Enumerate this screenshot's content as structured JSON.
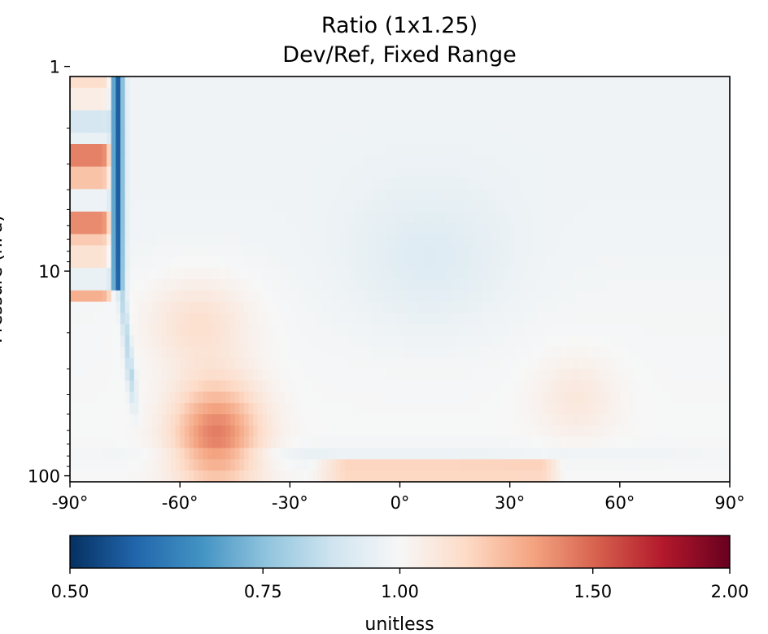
{
  "chart_data": {
    "type": "heatmap",
    "title": "Ratio (1x1.25)",
    "subtitle": "Dev/Ref, Fixed Range",
    "xlabel": "",
    "ylabel": "Pressure (hPa)",
    "x_scale": "linear",
    "y_scale": "log",
    "y_inverted": true,
    "xlim": [
      -90,
      90
    ],
    "ylim": [
      100,
      1
    ],
    "x_ticks": [
      {
        "value": -90,
        "label": "-90°"
      },
      {
        "value": -60,
        "label": "-60°"
      },
      {
        "value": -30,
        "label": "-30°"
      },
      {
        "value": 0,
        "label": "0°"
      },
      {
        "value": 30,
        "label": "30°"
      },
      {
        "value": 60,
        "label": "60°"
      },
      {
        "value": 90,
        "label": "90°"
      }
    ],
    "y_ticks": [
      {
        "value": 1,
        "label": "1"
      },
      {
        "value": 10,
        "label": "10"
      },
      {
        "value": 100,
        "label": "100"
      }
    ],
    "colorbar": {
      "label": "unitless",
      "colormap": "RdBu_r",
      "scale": "log",
      "range": [
        0.5,
        2.0
      ],
      "ticks": [
        {
          "value": 0.5,
          "label": "0.50"
        },
        {
          "value": 0.75,
          "label": "0.75"
        },
        {
          "value": 1.0,
          "label": "1.00"
        },
        {
          "value": 1.5,
          "label": "1.50"
        },
        {
          "value": 2.0,
          "label": "2.00"
        }
      ]
    },
    "grid": false,
    "features": [
      {
        "region": "polar vortex edge, thin strip",
        "lat": [
          -78,
          -75
        ],
        "pressure": [
          1,
          12
        ],
        "ratio": 0.55
      },
      {
        "region": "SH high-latitude stratosphere bands",
        "lat": [
          -90,
          -80
        ],
        "pressure": [
          1,
          15
        ],
        "ratio_range": [
          0.8,
          1.45
        ]
      },
      {
        "region": "SH mid-latitude lower stratosphere maximum",
        "lat": [
          -62,
          -35
        ],
        "pressure": [
          25,
          100
        ],
        "ratio_max": 1.45
      },
      {
        "region": "near-tropopause band",
        "lat": [
          -20,
          45
        ],
        "pressure": [
          85,
          100
        ],
        "ratio": 1.25
      },
      {
        "region": "tropical middle stratosphere minimum",
        "lat": [
          -5,
          25
        ],
        "pressure": [
          6,
          12
        ],
        "ratio": 0.92
      },
      {
        "region": "NH mid-latitude lower stratosphere",
        "lat": [
          35,
          60
        ],
        "pressure": [
          25,
          80
        ],
        "ratio": 1.08
      }
    ]
  }
}
